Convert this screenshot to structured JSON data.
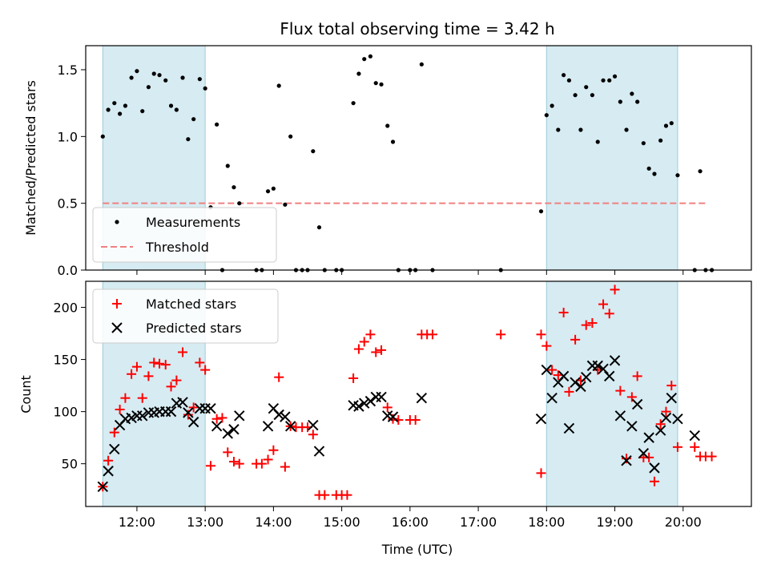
{
  "chart_data": [
    {
      "type": "scatter",
      "title": "Flux total observing time = 3.42 h",
      "ylabel": "Matched/Predicted stars",
      "xlabel": "",
      "xlim_hours": [
        11.25,
        21.0
      ],
      "ylim": [
        0,
        1.68
      ],
      "yticks": [
        0,
        0.5,
        1.0,
        1.5
      ],
      "ytick_labels": [
        "0.0",
        "0.5",
        "1.0",
        "1.5"
      ],
      "shaded_spans_hours": [
        [
          11.5,
          13.0
        ],
        [
          18.0,
          19.92
        ]
      ],
      "threshold": {
        "name": "Threshold",
        "value": 0.5,
        "x_start": 11.5,
        "x_end": 20.35
      },
      "legend": [
        "Measurements",
        "Threshold"
      ],
      "series": [
        {
          "name": "Measurements",
          "points": [
            [
              11.5,
              1.0
            ],
            [
              11.58,
              1.2
            ],
            [
              11.67,
              1.25
            ],
            [
              11.75,
              1.17
            ],
            [
              11.83,
              1.23
            ],
            [
              11.92,
              1.44
            ],
            [
              12.0,
              1.49
            ],
            [
              12.08,
              1.19
            ],
            [
              12.17,
              1.37
            ],
            [
              12.25,
              1.47
            ],
            [
              12.33,
              1.46
            ],
            [
              12.42,
              1.42
            ],
            [
              12.5,
              1.23
            ],
            [
              12.58,
              1.2
            ],
            [
              12.67,
              1.44
            ],
            [
              12.75,
              0.98
            ],
            [
              12.83,
              1.13
            ],
            [
              12.92,
              1.43
            ],
            [
              13.0,
              1.36
            ],
            [
              13.08,
              0.47
            ],
            [
              13.17,
              1.09
            ],
            [
              13.25,
              0.0
            ],
            [
              13.33,
              0.78
            ],
            [
              13.42,
              0.62
            ],
            [
              13.5,
              0.5
            ],
            [
              13.75,
              0.0
            ],
            [
              13.83,
              0.0
            ],
            [
              13.92,
              0.59
            ],
            [
              14.0,
              0.61
            ],
            [
              14.08,
              1.38
            ],
            [
              14.17,
              0.49
            ],
            [
              14.25,
              1.0
            ],
            [
              14.33,
              0.0
            ],
            [
              14.42,
              0.0
            ],
            [
              14.5,
              0.0
            ],
            [
              14.58,
              0.89
            ],
            [
              14.67,
              0.32
            ],
            [
              14.75,
              0.0
            ],
            [
              14.92,
              0.0
            ],
            [
              15.0,
              0.0
            ],
            [
              15.17,
              1.25
            ],
            [
              15.25,
              1.47
            ],
            [
              15.33,
              1.58
            ],
            [
              15.42,
              1.6
            ],
            [
              15.5,
              1.4
            ],
            [
              15.58,
              1.39
            ],
            [
              15.67,
              1.08
            ],
            [
              15.75,
              0.96
            ],
            [
              15.83,
              0.0
            ],
            [
              16.0,
              0.0
            ],
            [
              16.08,
              0.0
            ],
            [
              16.17,
              1.54
            ],
            [
              16.33,
              0.0
            ],
            [
              17.33,
              0.0
            ],
            [
              17.92,
              0.44
            ],
            [
              18.0,
              1.16
            ],
            [
              18.08,
              1.23
            ],
            [
              18.17,
              1.05
            ],
            [
              18.25,
              1.46
            ],
            [
              18.33,
              1.42
            ],
            [
              18.42,
              1.31
            ],
            [
              18.5,
              1.05
            ],
            [
              18.58,
              1.37
            ],
            [
              18.67,
              1.31
            ],
            [
              18.75,
              0.96
            ],
            [
              18.83,
              1.42
            ],
            [
              18.92,
              1.42
            ],
            [
              19.0,
              1.45
            ],
            [
              19.08,
              1.26
            ],
            [
              19.17,
              1.05
            ],
            [
              19.25,
              1.32
            ],
            [
              19.33,
              1.26
            ],
            [
              19.42,
              0.95
            ],
            [
              19.5,
              0.76
            ],
            [
              19.58,
              0.72
            ],
            [
              19.67,
              0.97
            ],
            [
              19.75,
              1.08
            ],
            [
              19.83,
              1.1
            ],
            [
              19.92,
              0.71
            ],
            [
              20.17,
              0.0
            ],
            [
              20.25,
              0.74
            ],
            [
              20.33,
              0.0
            ],
            [
              20.42,
              0.0
            ]
          ]
        }
      ]
    },
    {
      "type": "scatter",
      "title": "",
      "ylabel": "Count",
      "xlabel": "Time (UTC)",
      "xlim_hours": [
        11.25,
        21.0
      ],
      "ylim": [
        9,
        225
      ],
      "yticks": [
        50,
        100,
        150,
        200
      ],
      "ytick_labels": [
        "50",
        "100",
        "150",
        "200"
      ],
      "xticks_hours": [
        12,
        13,
        14,
        15,
        16,
        17,
        18,
        19,
        20
      ],
      "xtick_labels": [
        "12:00",
        "13:00",
        "14:00",
        "15:00",
        "16:00",
        "17:00",
        "18:00",
        "19:00",
        "20:00"
      ],
      "shaded_spans_hours": [
        [
          11.5,
          13.0
        ],
        [
          18.0,
          19.92
        ]
      ],
      "legend": [
        "Matched stars",
        "Predicted stars"
      ],
      "series": [
        {
          "name": "Matched stars",
          "marker": "plus",
          "points": [
            [
              11.5,
              28
            ],
            [
              11.58,
              53
            ],
            [
              11.67,
              80
            ],
            [
              11.75,
              102
            ],
            [
              11.83,
              113
            ],
            [
              11.92,
              136
            ],
            [
              12.0,
              143
            ],
            [
              12.08,
              113
            ],
            [
              12.17,
              134
            ],
            [
              12.25,
              147
            ],
            [
              12.33,
              146
            ],
            [
              12.42,
              145
            ],
            [
              12.5,
              124
            ],
            [
              12.58,
              130
            ],
            [
              12.67,
              157
            ],
            [
              12.75,
              97
            ],
            [
              12.83,
              104
            ],
            [
              12.92,
              147
            ],
            [
              13.0,
              140
            ],
            [
              13.08,
              48
            ],
            [
              13.17,
              93
            ],
            [
              13.25,
              94
            ],
            [
              13.33,
              61
            ],
            [
              13.42,
              52
            ],
            [
              13.5,
              50
            ],
            [
              13.75,
              50
            ],
            [
              13.83,
              50
            ],
            [
              13.92,
              54
            ],
            [
              14.0,
              63
            ],
            [
              14.08,
              133
            ],
            [
              14.17,
              47
            ],
            [
              14.25,
              86
            ],
            [
              14.33,
              85
            ],
            [
              14.42,
              85
            ],
            [
              14.5,
              85
            ],
            [
              14.58,
              78
            ],
            [
              14.67,
              20
            ],
            [
              14.75,
              20
            ],
            [
              14.92,
              20
            ],
            [
              15.0,
              20
            ],
            [
              15.08,
              20
            ],
            [
              15.17,
              132
            ],
            [
              15.25,
              160
            ],
            [
              15.33,
              167
            ],
            [
              15.42,
              174
            ],
            [
              15.5,
              157
            ],
            [
              15.58,
              159
            ],
            [
              15.67,
              104
            ],
            [
              15.75,
              93
            ],
            [
              15.83,
              92
            ],
            [
              16.0,
              92
            ],
            [
              16.08,
              92
            ],
            [
              16.17,
              174
            ],
            [
              16.25,
              174
            ],
            [
              16.33,
              174
            ],
            [
              17.33,
              174
            ],
            [
              17.92,
              174
            ],
            [
              17.92,
              41
            ],
            [
              18.0,
              163
            ],
            [
              18.08,
              140
            ],
            [
              18.17,
              135
            ],
            [
              18.25,
              195
            ],
            [
              18.33,
              119
            ],
            [
              18.42,
              169
            ],
            [
              18.5,
              130
            ],
            [
              18.58,
              183
            ],
            [
              18.67,
              185
            ],
            [
              18.75,
              140
            ],
            [
              18.83,
              203
            ],
            [
              18.92,
              194
            ],
            [
              19.0,
              217
            ],
            [
              19.08,
              120
            ],
            [
              19.17,
              55
            ],
            [
              19.25,
              114
            ],
            [
              19.33,
              134
            ],
            [
              19.42,
              56
            ],
            [
              19.5,
              56
            ],
            [
              19.58,
              33
            ],
            [
              19.67,
              88
            ],
            [
              19.75,
              100
            ],
            [
              19.83,
              125
            ],
            [
              19.92,
              66
            ],
            [
              20.17,
              66
            ],
            [
              20.25,
              57
            ],
            [
              20.33,
              57
            ],
            [
              20.42,
              57
            ]
          ]
        },
        {
          "name": "Predicted stars",
          "marker": "x",
          "points": [
            [
              11.5,
              28
            ],
            [
              11.58,
              43
            ],
            [
              11.67,
              64
            ],
            [
              11.75,
              87
            ],
            [
              11.83,
              93
            ],
            [
              11.92,
              94
            ],
            [
              12.0,
              96
            ],
            [
              12.08,
              96
            ],
            [
              12.17,
              99
            ],
            [
              12.25,
              99
            ],
            [
              12.33,
              100
            ],
            [
              12.42,
              100
            ],
            [
              12.5,
              100
            ],
            [
              12.58,
              108
            ],
            [
              12.67,
              109
            ],
            [
              12.75,
              99
            ],
            [
              12.83,
              90
            ],
            [
              12.92,
              103
            ],
            [
              13.0,
              103
            ],
            [
              13.08,
              103
            ],
            [
              13.17,
              86
            ],
            [
              13.33,
              79
            ],
            [
              13.42,
              83
            ],
            [
              13.5,
              96
            ],
            [
              13.92,
              86
            ],
            [
              14.0,
              103
            ],
            [
              14.08,
              97
            ],
            [
              14.17,
              95
            ],
            [
              14.25,
              86
            ],
            [
              14.58,
              87
            ],
            [
              14.67,
              62
            ],
            [
              15.17,
              106
            ],
            [
              15.25,
              105
            ],
            [
              15.33,
              108
            ],
            [
              15.42,
              110
            ],
            [
              15.5,
              114
            ],
            [
              15.58,
              114
            ],
            [
              15.67,
              96
            ],
            [
              15.75,
              95
            ],
            [
              16.17,
              113
            ],
            [
              17.92,
              93
            ],
            [
              18.0,
              140
            ],
            [
              18.08,
              113
            ],
            [
              18.17,
              128
            ],
            [
              18.25,
              134
            ],
            [
              18.33,
              84
            ],
            [
              18.42,
              128
            ],
            [
              18.5,
              124
            ],
            [
              18.58,
              133
            ],
            [
              18.67,
              144
            ],
            [
              18.75,
              144
            ],
            [
              18.83,
              141
            ],
            [
              18.92,
              134
            ],
            [
              19.0,
              149
            ],
            [
              19.08,
              96
            ],
            [
              19.17,
              53
            ],
            [
              19.25,
              86
            ],
            [
              19.33,
              107
            ],
            [
              19.42,
              60
            ],
            [
              19.5,
              75
            ],
            [
              19.58,
              46
            ],
            [
              19.67,
              82
            ],
            [
              19.75,
              94
            ],
            [
              19.83,
              113
            ],
            [
              19.92,
              93
            ],
            [
              20.17,
              77
            ]
          ]
        }
      ]
    }
  ]
}
